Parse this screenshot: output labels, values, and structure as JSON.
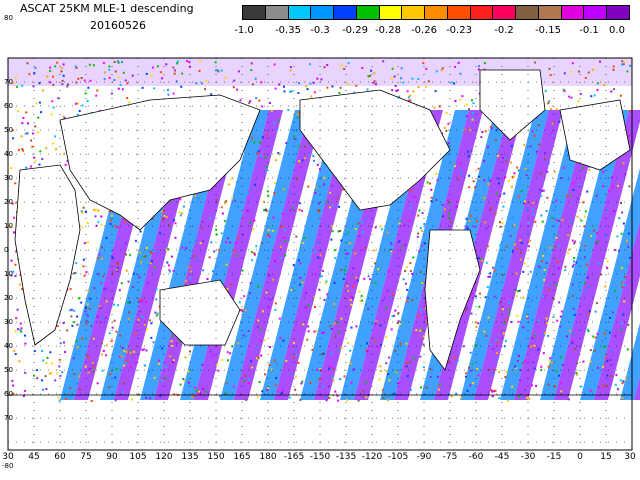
{
  "title": "ASCAT 25KM MLE-1 descending",
  "date": "20160526",
  "colorbar": {
    "labels": [
      "-1.0",
      "-0.35",
      "-0.3",
      "-0.29",
      "-0.28",
      "-0.26",
      "-0.23",
      "-0.2",
      "-0.15",
      "-0.1",
      "0.0"
    ],
    "colors": [
      "#3a3a3a",
      "#8c8c8c",
      "#00c8ff",
      "#0096ff",
      "#0040ff",
      "#00c000",
      "#ffff00",
      "#ffc800",
      "#ff8c00",
      "#ff5000",
      "#ff2020",
      "#ff0060",
      "#806040",
      "#b07850",
      "#e000e0",
      "#c000ff",
      "#8000c0"
    ]
  },
  "y_labels": [
    "80",
    "70",
    "60",
    "50",
    "40",
    "30",
    "20",
    "10",
    "0",
    "10",
    "20",
    "30",
    "40",
    "50",
    "60",
    "70"
  ],
  "x_labels": [
    "30",
    "45",
    "60",
    "75",
    "90",
    "105",
    "120",
    "135",
    "150",
    "165",
    "180",
    "-165",
    "-150",
    "-135",
    "-120",
    "-105",
    "-90",
    "-75",
    "-60",
    "-45",
    "-30",
    "-15",
    "0",
    "15",
    "30"
  ],
  "bottom_label": "-80"
}
